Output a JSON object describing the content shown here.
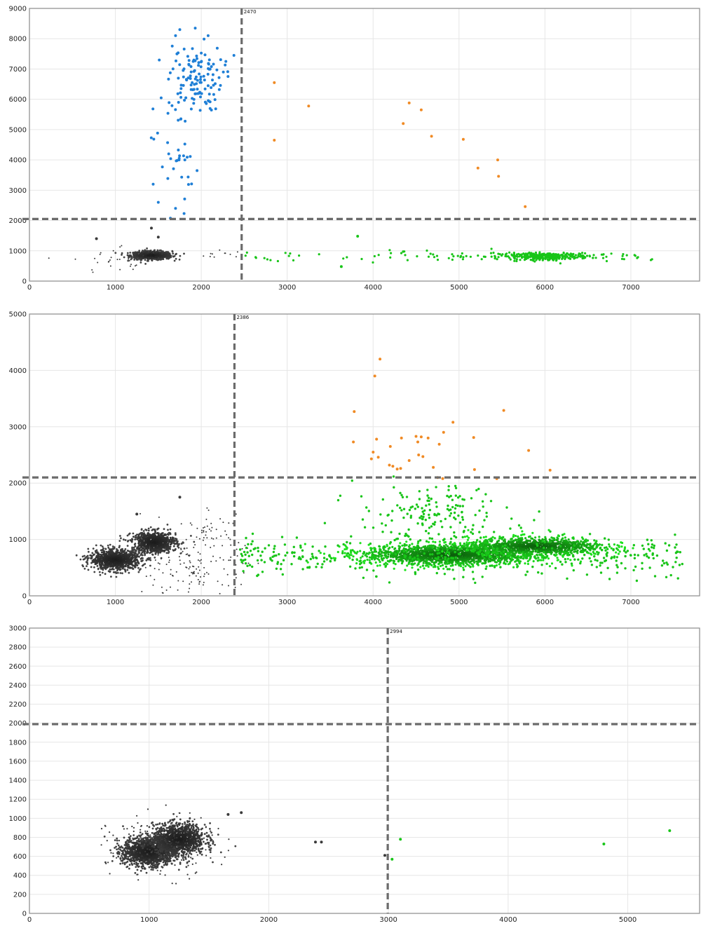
{
  "colors": {
    "negative": "#3a3a3a",
    "ch2_positive": "#1f7fd6",
    "ch1_positive": "#19c519",
    "double_positive": "#f08a24",
    "threshold": "#6b6b6b",
    "grid": "#e6e6e6"
  },
  "chart_data": [
    {
      "type": "scatter",
      "title": "",
      "xlabel": "",
      "ylabel": "",
      "xlim": [
        0,
        7800
      ],
      "ylim": [
        0,
        9000
      ],
      "xticks": [
        0,
        1000,
        2000,
        3000,
        4000,
        5000,
        6000,
        7000
      ],
      "yticks": [
        0,
        1000,
        2000,
        3000,
        4000,
        5000,
        6000,
        7000,
        8000,
        9000
      ],
      "grid": true,
      "threshold_x": 2470,
      "threshold_x_label": "2470",
      "threshold_y": 2050,
      "clusters": [
        {
          "color_key": "negative",
          "shape": "blob",
          "cx": 1420,
          "cy": 850,
          "sx": 120,
          "sy": 70,
          "n": 650,
          "r": 1.4
        },
        {
          "color_key": "negative",
          "shape": "ellipse",
          "cx": 1100,
          "cy": 700,
          "sx": 300,
          "sy": 250,
          "n": 35,
          "r": 1.0
        },
        {
          "color_key": "negative",
          "shape": "ellipse",
          "cx": 2100,
          "cy": 880,
          "sx": 200,
          "sy": 80,
          "n": 12,
          "r": 1.0
        },
        {
          "color_key": "ch2_positive",
          "shape": "ellipse",
          "cx": 1930,
          "cy": 6700,
          "sx": 160,
          "sy": 550,
          "n": 120,
          "r": 2.0
        },
        {
          "color_key": "ch2_positive",
          "shape": "ellipse",
          "cx": 1700,
          "cy": 4300,
          "sx": 130,
          "sy": 1000,
          "n": 35,
          "r": 2.0
        },
        {
          "color_key": "ch1_positive",
          "shape": "ellipse",
          "cx": 6000,
          "cy": 820,
          "sx": 260,
          "sy": 55,
          "n": 320,
          "r": 1.6
        },
        {
          "color_key": "ch1_positive",
          "shape": "uniform",
          "x0": 2500,
          "x1": 7250,
          "cy": 820,
          "sy": 90,
          "n": 90,
          "r": 1.6
        }
      ],
      "points": [
        {
          "x": 2850,
          "y": 6550,
          "color_key": "double_positive"
        },
        {
          "x": 3250,
          "y": 5780,
          "color_key": "double_positive"
        },
        {
          "x": 2850,
          "y": 4650,
          "color_key": "double_positive"
        },
        {
          "x": 4420,
          "y": 5880,
          "color_key": "double_positive"
        },
        {
          "x": 4560,
          "y": 5650,
          "color_key": "double_positive"
        },
        {
          "x": 4350,
          "y": 5200,
          "color_key": "double_positive"
        },
        {
          "x": 4680,
          "y": 4780,
          "color_key": "double_positive"
        },
        {
          "x": 5050,
          "y": 4680,
          "color_key": "double_positive"
        },
        {
          "x": 5450,
          "y": 4000,
          "color_key": "double_positive"
        },
        {
          "x": 5220,
          "y": 3730,
          "color_key": "double_positive"
        },
        {
          "x": 5460,
          "y": 3460,
          "color_key": "double_positive"
        },
        {
          "x": 5770,
          "y": 2460,
          "color_key": "double_positive"
        },
        {
          "x": 3820,
          "y": 1480,
          "color_key": "ch1_positive"
        },
        {
          "x": 3630,
          "y": 480,
          "color_key": "ch1_positive"
        },
        {
          "x": 1700,
          "y": 2400,
          "color_key": "ch2_positive"
        },
        {
          "x": 1800,
          "y": 2230,
          "color_key": "ch2_positive"
        },
        {
          "x": 1500,
          "y": 2600,
          "color_key": "ch2_positive"
        },
        {
          "x": 1440,
          "y": 3200,
          "color_key": "ch2_positive"
        },
        {
          "x": 1750,
          "y": 8300,
          "color_key": "ch2_positive"
        },
        {
          "x": 1930,
          "y": 8350,
          "color_key": "ch2_positive"
        },
        {
          "x": 1700,
          "y": 8100,
          "color_key": "ch2_positive"
        },
        {
          "x": 2080,
          "y": 8100,
          "color_key": "ch2_positive"
        },
        {
          "x": 2380,
          "y": 7450,
          "color_key": "ch2_positive"
        },
        {
          "x": 1420,
          "y": 1750,
          "color_key": "negative"
        },
        {
          "x": 1500,
          "y": 1450,
          "color_key": "negative"
        },
        {
          "x": 780,
          "y": 1400,
          "color_key": "negative"
        }
      ]
    },
    {
      "type": "scatter",
      "title": "",
      "xlabel": "",
      "ylabel": "",
      "xlim": [
        0,
        7800
      ],
      "ylim": [
        0,
        5000
      ],
      "xticks": [
        0,
        1000,
        2000,
        3000,
        4000,
        5000,
        6000,
        7000
      ],
      "yticks": [
        0,
        1000,
        2000,
        3000,
        4000,
        5000
      ],
      "grid": true,
      "threshold_x": 2386,
      "threshold_x_label": "2386",
      "threshold_y": 2100,
      "clusters": [
        {
          "color_key": "negative",
          "shape": "blob",
          "cx": 1000,
          "cy": 640,
          "sx": 150,
          "sy": 90,
          "n": 900,
          "r": 1.4
        },
        {
          "color_key": "negative",
          "shape": "blob",
          "cx": 1450,
          "cy": 950,
          "sx": 130,
          "sy": 95,
          "n": 800,
          "r": 1.4
        },
        {
          "color_key": "negative",
          "shape": "ellipse",
          "cx": 1950,
          "cy": 500,
          "sx": 280,
          "sy": 300,
          "n": 140,
          "r": 1.0
        },
        {
          "color_key": "negative",
          "shape": "ellipse",
          "cx": 2100,
          "cy": 1150,
          "sx": 160,
          "sy": 180,
          "n": 40,
          "r": 1.0
        },
        {
          "color_key": "ch1_positive",
          "shape": "blob",
          "cx": 4900,
          "cy": 730,
          "sx": 500,
          "sy": 90,
          "n": 1600,
          "r": 1.6
        },
        {
          "color_key": "ch1_positive",
          "shape": "blob",
          "cx": 5900,
          "cy": 880,
          "sx": 400,
          "sy": 80,
          "n": 900,
          "r": 1.6
        },
        {
          "color_key": "ch1_positive",
          "shape": "uniform",
          "x0": 2450,
          "x1": 7600,
          "cy": 700,
          "sy": 170,
          "n": 450,
          "r": 1.7
        },
        {
          "color_key": "ch1_positive",
          "shape": "ellipse",
          "cx": 4700,
          "cy": 1400,
          "sx": 450,
          "sy": 280,
          "n": 170,
          "r": 1.7
        }
      ],
      "points": [
        {
          "x": 4080,
          "y": 4200,
          "color_key": "double_positive"
        },
        {
          "x": 4020,
          "y": 3900,
          "color_key": "double_positive"
        },
        {
          "x": 3780,
          "y": 3270,
          "color_key": "double_positive"
        },
        {
          "x": 5520,
          "y": 3290,
          "color_key": "double_positive"
        },
        {
          "x": 4930,
          "y": 3080,
          "color_key": "double_positive"
        },
        {
          "x": 4820,
          "y": 2900,
          "color_key": "double_positive"
        },
        {
          "x": 4500,
          "y": 2830,
          "color_key": "double_positive"
        },
        {
          "x": 4560,
          "y": 2820,
          "color_key": "double_positive"
        },
        {
          "x": 4640,
          "y": 2800,
          "color_key": "double_positive"
        },
        {
          "x": 4330,
          "y": 2800,
          "color_key": "double_positive"
        },
        {
          "x": 5170,
          "y": 2810,
          "color_key": "double_positive"
        },
        {
          "x": 4040,
          "y": 2780,
          "color_key": "double_positive"
        },
        {
          "x": 3770,
          "y": 2730,
          "color_key": "double_positive"
        },
        {
          "x": 4520,
          "y": 2730,
          "color_key": "double_positive"
        },
        {
          "x": 4770,
          "y": 2690,
          "color_key": "double_positive"
        },
        {
          "x": 4200,
          "y": 2650,
          "color_key": "double_positive"
        },
        {
          "x": 5810,
          "y": 2580,
          "color_key": "double_positive"
        },
        {
          "x": 4000,
          "y": 2550,
          "color_key": "double_positive"
        },
        {
          "x": 4530,
          "y": 2500,
          "color_key": "double_positive"
        },
        {
          "x": 4580,
          "y": 2470,
          "color_key": "double_positive"
        },
        {
          "x": 4060,
          "y": 2460,
          "color_key": "double_positive"
        },
        {
          "x": 3980,
          "y": 2430,
          "color_key": "double_positive"
        },
        {
          "x": 4420,
          "y": 2400,
          "color_key": "double_positive"
        },
        {
          "x": 4190,
          "y": 2320,
          "color_key": "double_positive"
        },
        {
          "x": 4230,
          "y": 2300,
          "color_key": "double_positive"
        },
        {
          "x": 4700,
          "y": 2280,
          "color_key": "double_positive"
        },
        {
          "x": 4320,
          "y": 2260,
          "color_key": "double_positive"
        },
        {
          "x": 4280,
          "y": 2250,
          "color_key": "double_positive"
        },
        {
          "x": 5180,
          "y": 2240,
          "color_key": "double_positive"
        },
        {
          "x": 6060,
          "y": 2230,
          "color_key": "double_positive"
        },
        {
          "x": 4750,
          "y": 2100,
          "color_key": "double_positive"
        },
        {
          "x": 4810,
          "y": 2080,
          "color_key": "double_positive"
        },
        {
          "x": 5440,
          "y": 2080,
          "color_key": "double_positive"
        },
        {
          "x": 1750,
          "y": 1750,
          "color_key": "negative"
        },
        {
          "x": 1250,
          "y": 1450,
          "color_key": "negative"
        }
      ]
    },
    {
      "type": "scatter",
      "title": "",
      "xlabel": "",
      "ylabel": "",
      "xlim": [
        0,
        5600
      ],
      "ylim": [
        0,
        3000
      ],
      "xticks": [
        0,
        1000,
        2000,
        3000,
        4000,
        5000
      ],
      "yticks": [
        0,
        200,
        400,
        600,
        800,
        1000,
        1200,
        1400,
        1600,
        1800,
        2000,
        2200,
        2400,
        2600,
        2800,
        3000
      ],
      "grid": true,
      "threshold_x": 2994,
      "threshold_x_label": "2994",
      "threshold_y": 1990,
      "clusters": [
        {
          "color_key": "negative",
          "shape": "blob",
          "cx": 1000,
          "cy": 650,
          "sx": 110,
          "sy": 75,
          "n": 1400,
          "r": 1.4
        },
        {
          "color_key": "negative",
          "shape": "blob",
          "cx": 1250,
          "cy": 780,
          "sx": 110,
          "sy": 80,
          "n": 1100,
          "r": 1.4
        },
        {
          "color_key": "negative",
          "shape": "ellipse",
          "cx": 1100,
          "cy": 700,
          "sx": 220,
          "sy": 160,
          "n": 200,
          "r": 1.1
        }
      ],
      "points": [
        {
          "x": 3100,
          "y": 780,
          "color_key": "ch1_positive"
        },
        {
          "x": 3030,
          "y": 570,
          "color_key": "ch1_positive"
        },
        {
          "x": 4800,
          "y": 730,
          "color_key": "ch1_positive"
        },
        {
          "x": 5350,
          "y": 870,
          "color_key": "ch1_positive"
        },
        {
          "x": 2390,
          "y": 750,
          "color_key": "negative"
        },
        {
          "x": 2440,
          "y": 750,
          "color_key": "negative"
        },
        {
          "x": 2970,
          "y": 610,
          "color_key": "negative"
        },
        {
          "x": 1770,
          "y": 1060,
          "color_key": "negative"
        },
        {
          "x": 1660,
          "y": 1040,
          "color_key": "negative"
        }
      ]
    }
  ]
}
